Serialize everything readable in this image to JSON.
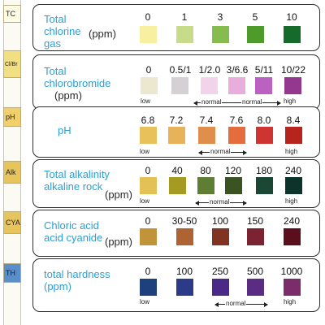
{
  "sidebar": {
    "tabs": [
      {
        "label": "TC",
        "color": "#fdfbe3"
      },
      {
        "label": "Cl/Br",
        "color": "#f1df82"
      },
      {
        "label": "pH",
        "color": "#f1cf6a"
      },
      {
        "label": "Alk",
        "color": "#e7c45c"
      },
      {
        "label": "CYA",
        "color": "#e7c45c"
      },
      {
        "label": "TH",
        "color": "#5a8ec9"
      }
    ]
  },
  "panels": [
    {
      "title": "Total\nchlorine\ngas",
      "unit": "(ppm)",
      "values": [
        "0",
        "1",
        "3",
        "5",
        "10"
      ],
      "colors": [
        "#f6f0a0",
        "#c7db8a",
        "#85bb4f",
        "#4e9a2b",
        "#166b2b"
      ],
      "labels": {}
    },
    {
      "title": "Total\nchlorobromide",
      "unit": "(ppm)",
      "values": [
        "0",
        "0.5/1",
        "1/2.0",
        "3/6.6",
        "5/11",
        "10/22"
      ],
      "colors": [
        "#ebe8cf",
        "#d4d0d4",
        "#f1d3ea",
        "#e8addb",
        "#bb61c2",
        "#93378f"
      ],
      "labels": {
        "low": "low",
        "normal1": "normal",
        "normal2": "normal",
        "high": "high"
      }
    },
    {
      "title": "pH",
      "unit": "",
      "values": [
        "6.8",
        "7.2",
        "7.4",
        "7.6",
        "8.0",
        "8.4"
      ],
      "colors": [
        "#e8c15a",
        "#e7b259",
        "#e08e4c",
        "#e36d3d",
        "#cf3530",
        "#b7231d"
      ],
      "labels": {
        "low": "low",
        "normal": "normal",
        "high": "high"
      }
    },
    {
      "title": "Total alkalinity\nalkaline rock",
      "unit": "(ppm)",
      "values": [
        "0",
        "40",
        "80",
        "120",
        "180",
        "240"
      ],
      "colors": [
        "#e3c154",
        "#a59a22",
        "#5d7e33",
        "#3b5223",
        "#1a4834",
        "#0d342b"
      ],
      "labels": {
        "low": "low",
        "normal": "normal",
        "high": "high"
      }
    },
    {
      "title": "Chloric acid\nacid cyanide",
      "unit": "(ppm)",
      "values": [
        "0",
        "30-50",
        "100",
        "150",
        "240"
      ],
      "colors": [
        "#c2943a",
        "#ad6332",
        "#7f3320",
        "#7b2330",
        "#5b0f1d"
      ],
      "labels": {}
    },
    {
      "title": "total hardness\n   (ppm)",
      "unit": "",
      "values": [
        "0",
        "100",
        "250",
        "500",
        "1000"
      ],
      "colors": [
        "#1e417d",
        "#2b3b88",
        "#4a2a86",
        "#5a2d82",
        "#7b2d6b"
      ],
      "labels": {
        "low": "low",
        "normal": "normal",
        "high": "high"
      }
    }
  ]
}
